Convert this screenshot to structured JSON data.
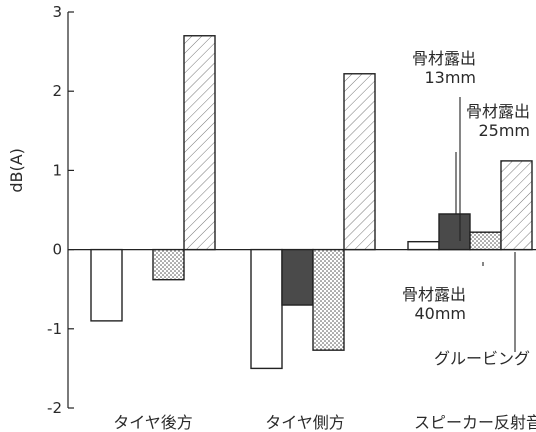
{
  "chart_data": {
    "type": "bar",
    "title": "",
    "xlabel": "",
    "ylabel": "dB(A)",
    "ylim": [
      -2,
      3
    ],
    "yticks": [
      3,
      2,
      1,
      0,
      -1,
      -2
    ],
    "categories": [
      "タイヤ後方",
      "タイヤ側方",
      "スピーカー反射音"
    ],
    "series": [
      {
        "name": "骨材露出 13mm",
        "pattern": "white",
        "values": [
          -0.9,
          -1.5,
          0.1
        ]
      },
      {
        "name": "骨材露出 25mm",
        "pattern": "dark",
        "values": [
          null,
          -0.7,
          0.45
        ]
      },
      {
        "name": "骨材露出 40mm",
        "pattern": "dotted",
        "values": [
          -0.38,
          -1.27,
          0.22
        ]
      },
      {
        "name": "グルービング",
        "pattern": "hatched",
        "values": [
          2.7,
          2.22,
          1.12
        ]
      }
    ],
    "annotations": [
      {
        "lines": [
          "骨材露出",
          "13mm"
        ]
      },
      {
        "lines": [
          "骨材露出",
          "25mm"
        ]
      },
      {
        "lines": [
          "骨材露出",
          "40mm"
        ]
      },
      {
        "lines": [
          "グルービング"
        ]
      }
    ]
  }
}
